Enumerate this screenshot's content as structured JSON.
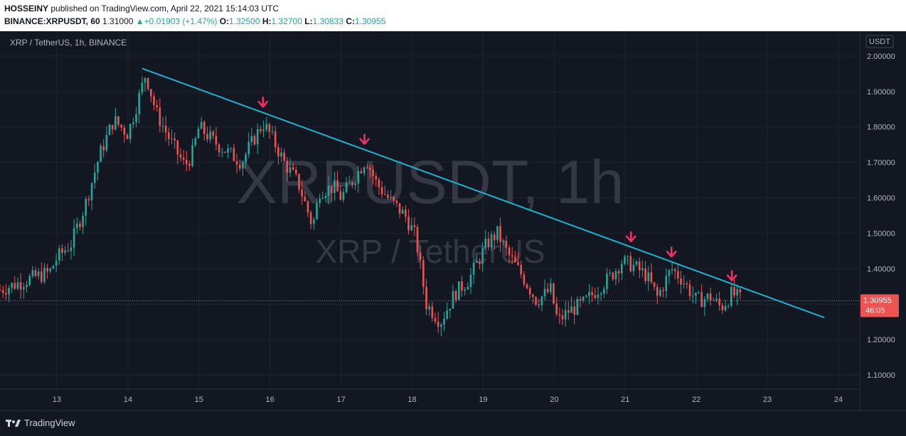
{
  "header": {
    "author": "HOSSEINY",
    "published": " published on TradingView.com, April 22, 2021 15:14:03 UTC",
    "symbol_line": "BINANCE:XRPUSDT, 60",
    "price": "1.31000",
    "change": "+0.01903 (+1.47%)",
    "o_label": "O:",
    "o_value": "1.32500",
    "h_label": "H:",
    "h_value": "1.32700",
    "l_label": "L:",
    "l_value": "1.30833",
    "c_label": "C:",
    "c_value": "1.30955"
  },
  "chart": {
    "pane_title": "XRP / TetherUS, 1h, BINANCE",
    "watermark_symbol": "XRPUSDT, 1h",
    "watermark_name": "XRP / TetherUS",
    "currency": "USDT",
    "last_price": "1.30955",
    "countdown": "46:05"
  },
  "footer": {
    "brand": "TradingView"
  },
  "colors": {
    "background": "#131722",
    "up": "#26a69a",
    "down": "#ef5350",
    "trendline": "#1fb2cf",
    "arrows": "#f23066",
    "price_tag": "#ef5350"
  },
  "chart_data": {
    "type": "candlestick",
    "interval": "1h",
    "x_ticks": [
      "13",
      "14",
      "15",
      "16",
      "17",
      "18",
      "19",
      "20",
      "21",
      "22",
      "23",
      "24"
    ],
    "y_ticks": [
      "1.10000",
      "1.20000",
      "1.30000",
      "1.40000",
      "1.50000",
      "1.60000",
      "1.70000",
      "1.80000",
      "1.90000",
      "2.00000"
    ],
    "ylim": [
      1.06,
      2.07
    ],
    "xlim_days": [
      12.2,
      24.3
    ],
    "grid": true,
    "last_price": 1.30955,
    "price_path": [
      [
        12.2,
        1.34
      ],
      [
        12.6,
        1.37
      ],
      [
        12.9,
        1.39
      ],
      [
        13.0,
        1.43
      ],
      [
        13.2,
        1.47
      ],
      [
        13.4,
        1.58
      ],
      [
        13.6,
        1.72
      ],
      [
        13.8,
        1.82
      ],
      [
        13.9,
        1.8
      ],
      [
        14.0,
        1.78
      ],
      [
        14.15,
        1.88
      ],
      [
        14.25,
        1.95
      ],
      [
        14.4,
        1.84
      ],
      [
        14.6,
        1.76
      ],
      [
        14.8,
        1.69
      ],
      [
        14.9,
        1.72
      ],
      [
        15.0,
        1.8
      ],
      [
        15.2,
        1.76
      ],
      [
        15.4,
        1.73
      ],
      [
        15.6,
        1.7
      ],
      [
        15.7,
        1.74
      ],
      [
        15.9,
        1.81
      ],
      [
        16.0,
        1.78
      ],
      [
        16.2,
        1.7
      ],
      [
        16.4,
        1.64
      ],
      [
        16.6,
        1.52
      ],
      [
        16.7,
        1.62
      ],
      [
        16.9,
        1.63
      ],
      [
        17.0,
        1.6
      ],
      [
        17.2,
        1.66
      ],
      [
        17.35,
        1.71
      ],
      [
        17.5,
        1.64
      ],
      [
        17.7,
        1.59
      ],
      [
        17.9,
        1.55
      ],
      [
        18.05,
        1.49
      ],
      [
        18.2,
        1.3
      ],
      [
        18.4,
        1.25
      ],
      [
        18.6,
        1.33
      ],
      [
        18.8,
        1.37
      ],
      [
        18.95,
        1.43
      ],
      [
        19.05,
        1.47
      ],
      [
        19.2,
        1.5
      ],
      [
        19.35,
        1.44
      ],
      [
        19.55,
        1.38
      ],
      [
        19.75,
        1.31
      ],
      [
        19.95,
        1.34
      ],
      [
        20.05,
        1.25
      ],
      [
        20.2,
        1.28
      ],
      [
        20.4,
        1.3
      ],
      [
        20.6,
        1.34
      ],
      [
        20.8,
        1.38
      ],
      [
        20.95,
        1.42
      ],
      [
        21.1,
        1.41
      ],
      [
        21.3,
        1.38
      ],
      [
        21.45,
        1.32
      ],
      [
        21.65,
        1.4
      ],
      [
        21.8,
        1.37
      ],
      [
        22.0,
        1.31
      ],
      [
        22.2,
        1.32
      ],
      [
        22.35,
        1.29
      ],
      [
        22.5,
        1.33
      ],
      [
        22.65,
        1.31
      ]
    ],
    "trendline": {
      "x": [
        14.2,
        23.8
      ],
      "y": [
        1.965,
        1.262
      ]
    },
    "arrow_markers": [
      {
        "x": 15.9,
        "y": 1.855
      },
      {
        "x": 17.33,
        "y": 1.75
      },
      {
        "x": 21.08,
        "y": 1.475
      },
      {
        "x": 21.65,
        "y": 1.432
      },
      {
        "x": 22.5,
        "y": 1.365
      }
    ]
  }
}
